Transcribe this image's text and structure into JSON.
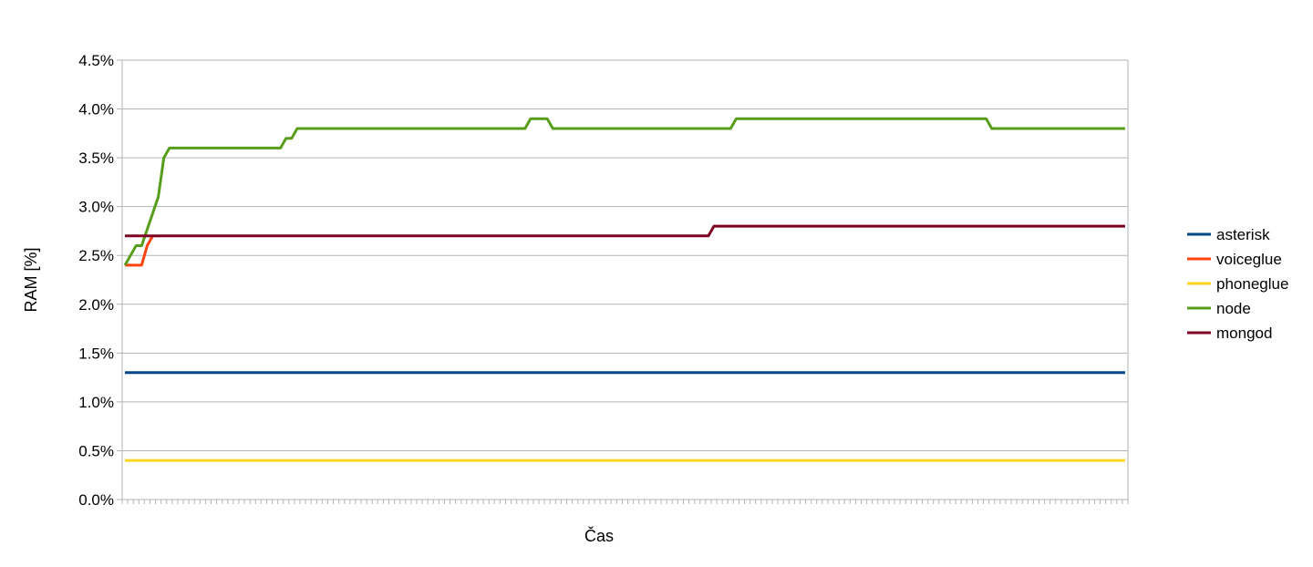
{
  "chart_data": {
    "type": "line",
    "title": "",
    "xlabel": "Čas",
    "ylabel": "RAM [%]",
    "ylim": [
      0,
      4.5
    ],
    "yticks": [
      "0.0%",
      "0.5%",
      "1.0%",
      "1.5%",
      "2.0%",
      "2.5%",
      "3.0%",
      "3.5%",
      "4.0%",
      "4.5%"
    ],
    "grid": true,
    "legend_position": "right",
    "x_count": 181,
    "series": [
      {
        "name": "asterisk",
        "color": "#004586",
        "points": [
          [
            0,
            1.3
          ],
          [
            180,
            1.3
          ]
        ]
      },
      {
        "name": "voiceglue",
        "color": "#ff420e",
        "points": [
          [
            0,
            2.4
          ],
          [
            1,
            2.4
          ],
          [
            2,
            2.4
          ],
          [
            3,
            2.4
          ],
          [
            4,
            2.6
          ],
          [
            5,
            2.7
          ]
        ]
      },
      {
        "name": "phoneglue",
        "color": "#ffd320",
        "points": [
          [
            0,
            0.4
          ],
          [
            180,
            0.4
          ]
        ]
      },
      {
        "name": "node",
        "color": "#579d1c",
        "points": [
          [
            0,
            2.4
          ],
          [
            2,
            2.6
          ],
          [
            3,
            2.6
          ],
          [
            6,
            3.1
          ],
          [
            7,
            3.5
          ],
          [
            8,
            3.6
          ],
          [
            28,
            3.6
          ],
          [
            29,
            3.7
          ],
          [
            30,
            3.7
          ],
          [
            31,
            3.8
          ],
          [
            72,
            3.8
          ],
          [
            73,
            3.9
          ],
          [
            76,
            3.9
          ],
          [
            77,
            3.8
          ],
          [
            109,
            3.8
          ],
          [
            110,
            3.9
          ],
          [
            155,
            3.9
          ],
          [
            156,
            3.8
          ],
          [
            180,
            3.8
          ]
        ]
      },
      {
        "name": "mongod",
        "color": "#7e0021",
        "points": [
          [
            0,
            2.7
          ],
          [
            105,
            2.7
          ],
          [
            106,
            2.8
          ],
          [
            180,
            2.8
          ]
        ]
      }
    ]
  }
}
